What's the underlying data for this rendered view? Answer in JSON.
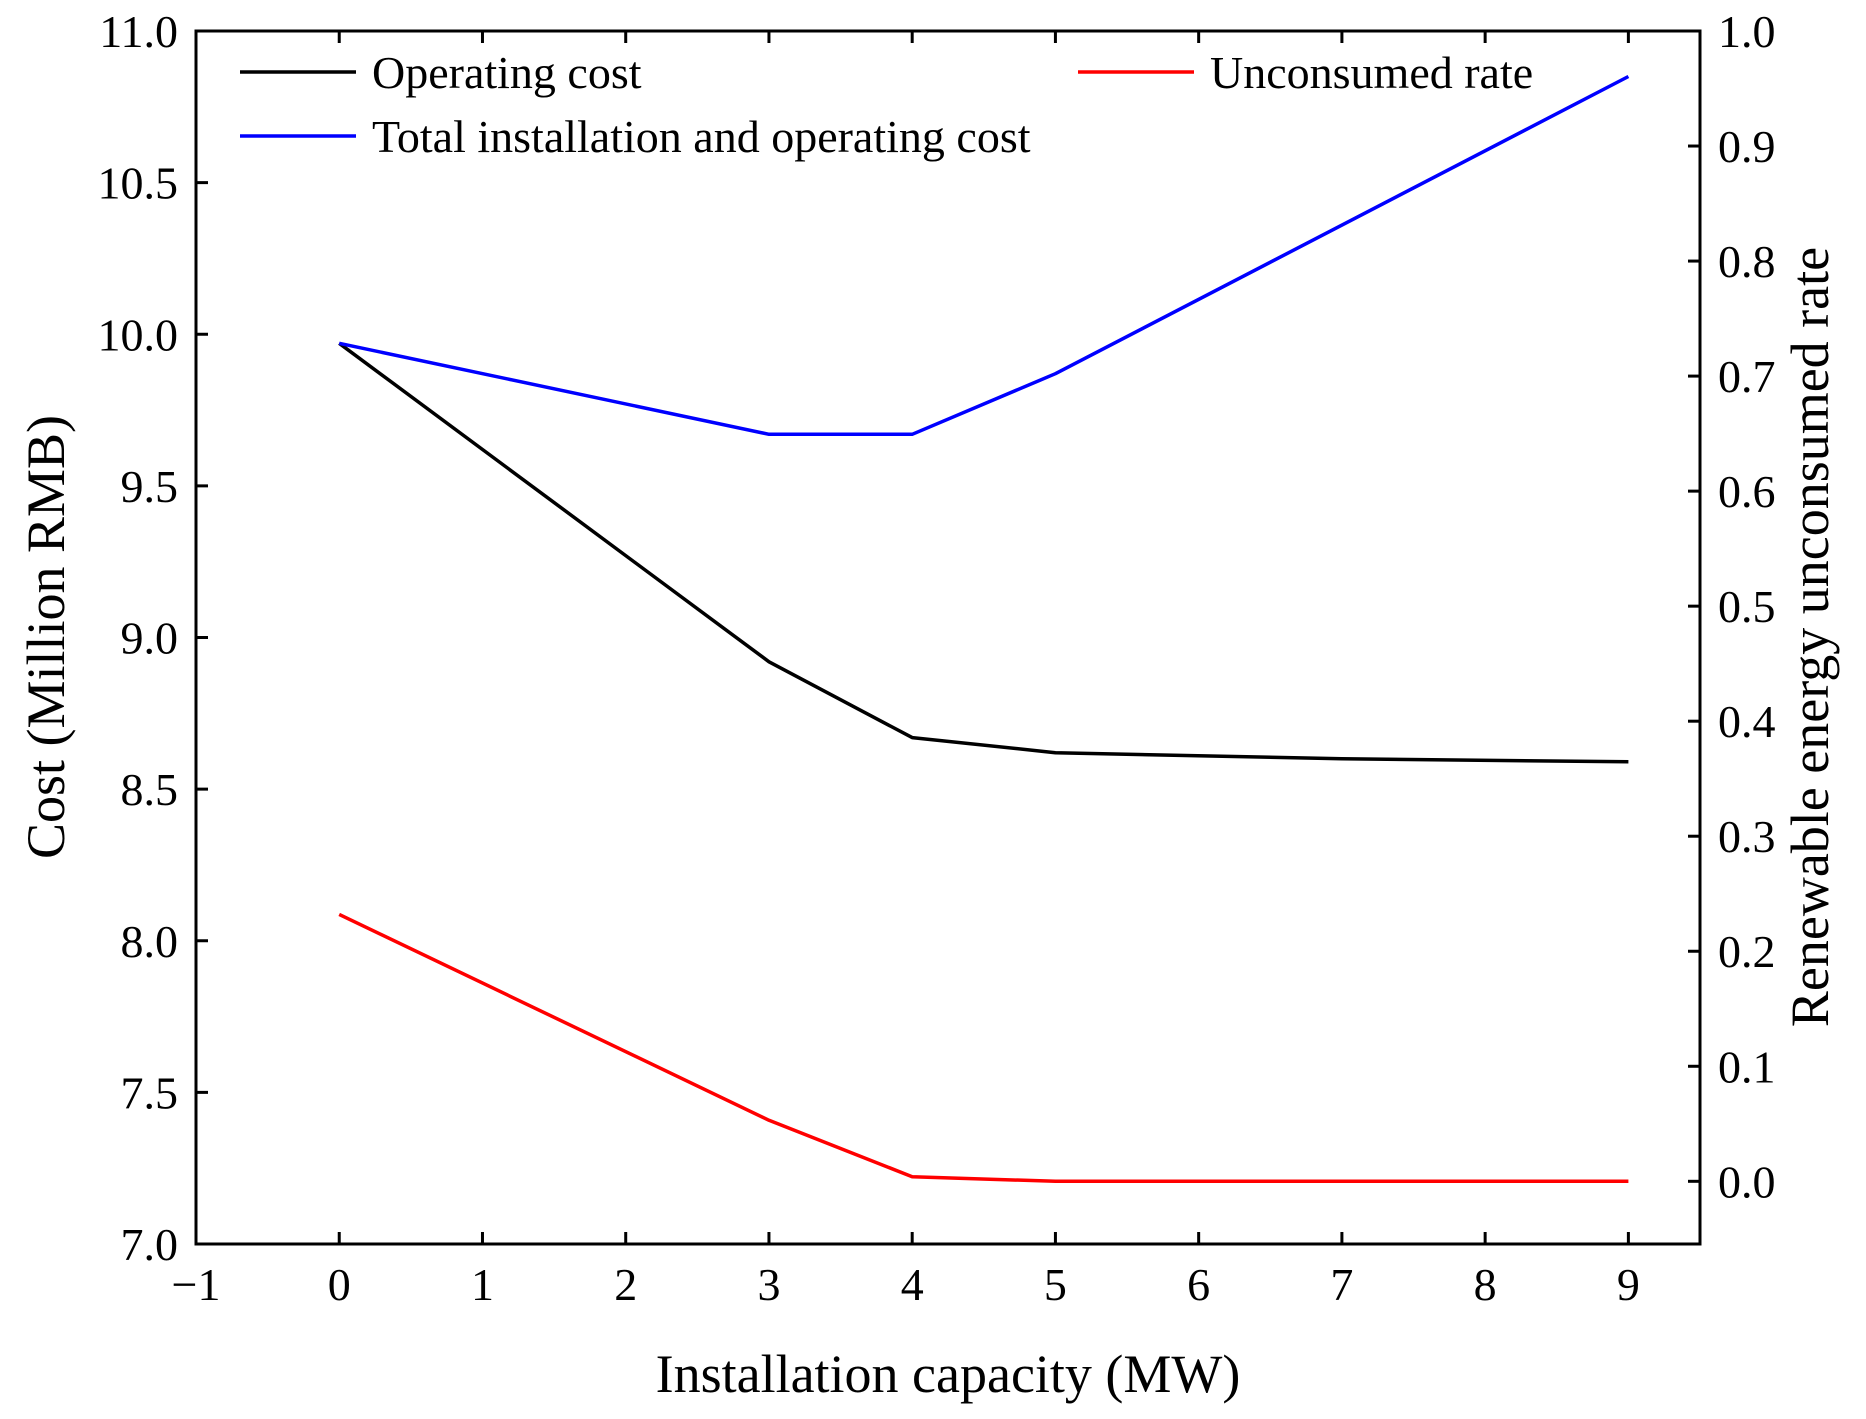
{
  "chart_data": {
    "type": "line",
    "title": "",
    "xlabel": "Installation capacity (MW)",
    "ylabel": "Cost (Million RMB)",
    "y2label": "Renewable energy unconsumed rate",
    "xlim": [
      -1,
      9.5
    ],
    "ylim": [
      7.0,
      11.0
    ],
    "y2lim": [
      -0.0545,
      1.0
    ],
    "x_ticks": [
      -1,
      0,
      1,
      2,
      3,
      4,
      5,
      6,
      7,
      8,
      9
    ],
    "x_tick_labels": [
      "−1",
      "0",
      "1",
      "2",
      "3",
      "4",
      "5",
      "6",
      "7",
      "8",
      "9"
    ],
    "y_ticks": [
      7.0,
      7.5,
      8.0,
      8.5,
      9.0,
      9.5,
      10.0,
      10.5,
      11.0
    ],
    "y_tick_labels": [
      "7.0",
      "7.5",
      "8.0",
      "8.5",
      "9.0",
      "9.5",
      "10.0",
      "10.5",
      "11.0"
    ],
    "y2_ticks": [
      0.0,
      0.1,
      0.2,
      0.3,
      0.4,
      0.5,
      0.6,
      0.7,
      0.8,
      0.9,
      1.0
    ],
    "y2_tick_labels": [
      "0.0",
      "0.1",
      "0.2",
      "0.3",
      "0.4",
      "0.5",
      "0.6",
      "0.7",
      "0.8",
      "0.9",
      "1.0"
    ],
    "grid": false,
    "legend_position": "top",
    "series": [
      {
        "name": "Operating cost",
        "axis": "left",
        "color": "#000000",
        "x": [
          0,
          3,
          4,
          5,
          7,
          9
        ],
        "values": [
          9.97,
          8.92,
          8.67,
          8.62,
          8.6,
          8.59
        ]
      },
      {
        "name": "Total installation and operating cost",
        "axis": "left",
        "color": "#0000ff",
        "x": [
          0,
          3,
          4,
          5,
          9
        ],
        "values": [
          9.97,
          9.67,
          9.67,
          9.87,
          10.85
        ]
      },
      {
        "name": "Unconsumed rate",
        "axis": "right",
        "color": "#ff0000",
        "x": [
          0,
          3,
          4,
          5,
          9
        ],
        "values": [
          0.232,
          0.053,
          0.004,
          0.0,
          0.0
        ]
      }
    ]
  }
}
